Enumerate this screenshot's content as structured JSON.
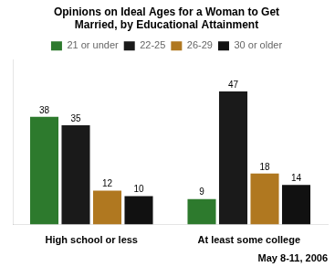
{
  "chart_data": {
    "type": "bar",
    "title": "Opinions on Ideal Ages for a Woman to Get\nMarried, by Educational Attainment",
    "categories": [
      "High school or less",
      "At least some college"
    ],
    "series": [
      {
        "name": "21 or under",
        "color": "#2d7a2d",
        "values": [
          38,
          9
        ]
      },
      {
        "name": "22-25",
        "color": "#1a1a1a",
        "values": [
          35,
          47
        ]
      },
      {
        "name": "26-29",
        "color": "#b07820",
        "values": [
          12,
          18
        ]
      },
      {
        "name": "30 or older",
        "color": "#111111",
        "values": [
          10,
          14
        ]
      }
    ],
    "footnote": "May 8-11, 2006",
    "ylim": [
      0,
      58
    ],
    "grid": false,
    "data_labels": true,
    "tick_labels": "x",
    "legend": "top"
  }
}
